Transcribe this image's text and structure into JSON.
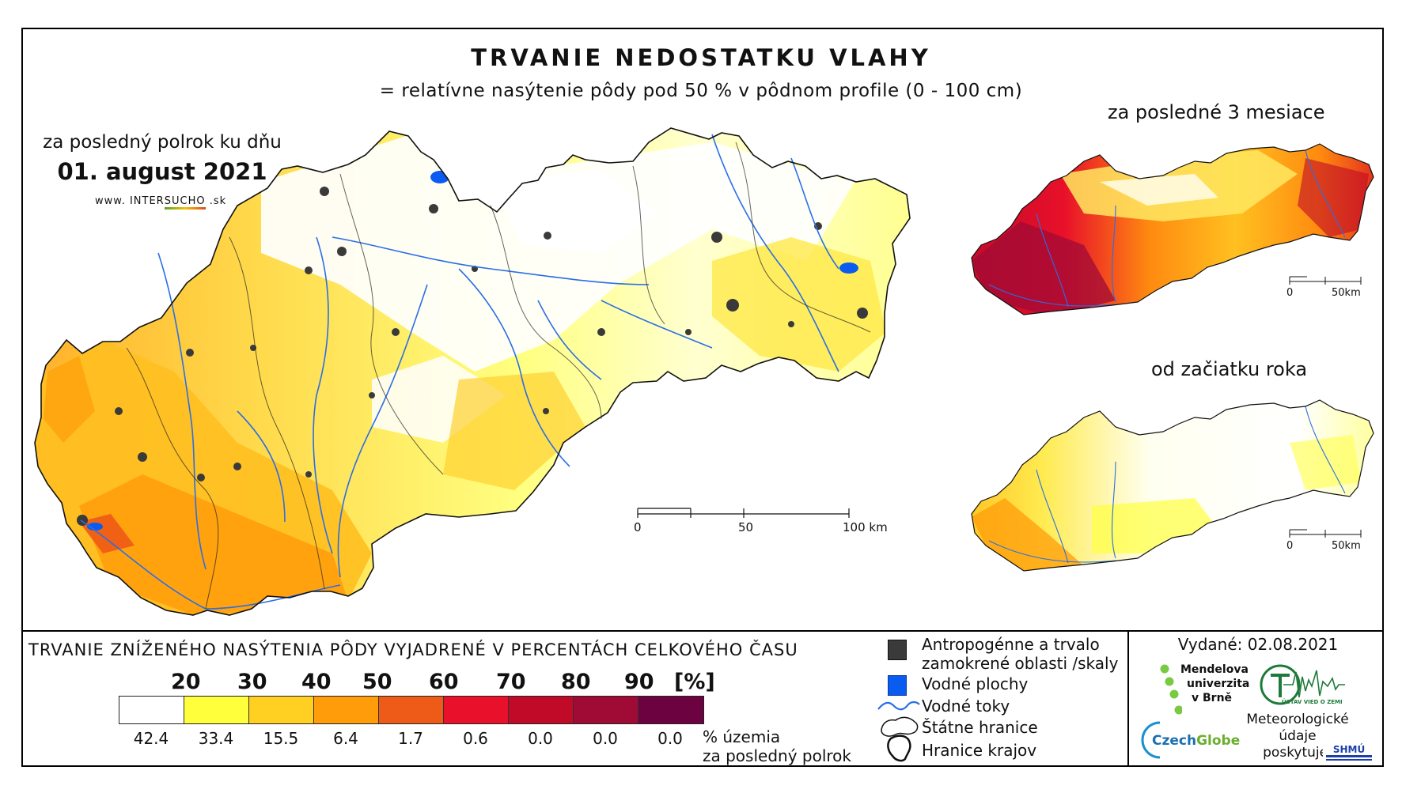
{
  "title": "TRVANIE NEDOSTATKU VLAHY",
  "subtitle": "= relatívne nasýtenie pôdy pod 50 % v pôdnom profile (0 - 100 cm)",
  "main_map": {
    "period_label": "za posledný polrok ku dňu",
    "date": "01. august 2021",
    "website_prefix": "www. INTER",
    "website_highlight": "SUCHO",
    "website_suffix": " .sk",
    "scale": {
      "t0": "0",
      "t1": "50",
      "t2": "100 km"
    }
  },
  "inset_top": {
    "label": "za posledné 3 mesiace",
    "scale": {
      "t0": "0",
      "t1": "50km"
    }
  },
  "inset_bottom": {
    "label": "od začiatku roka",
    "scale": {
      "t0": "0",
      "t1": "50km"
    }
  },
  "legend": {
    "title": "TRVANIE ZNÍŽENÉHO NASÝTENIA PÔDY VYJADRENÉ V PERCENTÁCH CELKOVÉHO ČASU",
    "ticks": [
      "20",
      "30",
      "40",
      "50",
      "60",
      "70",
      "80",
      "90"
    ],
    "unit": "[%]",
    "colors": [
      "#ffffff",
      "#ffff3c",
      "#ffcf21",
      "#ff9c0a",
      "#ee5a17",
      "#e8102a",
      "#c00a27",
      "#a00b36",
      "#6c0340"
    ],
    "percentages": [
      "42.4",
      "33.4",
      "15.5",
      "6.4",
      "1.7",
      "0.6",
      "0.0",
      "0.0",
      "0.0"
    ],
    "percent_label_line1": "% územia",
    "percent_label_line2": "za posledný polrok"
  },
  "symbols": {
    "anthropogenic_line1": "Antropogénne a trvalo",
    "anthropogenic_line2": "zamokrené oblasti /skaly",
    "water_bodies": "Vodné plochy",
    "rivers": "Vodné toky",
    "state_border": "Štátne hranice",
    "region_border": "Hranice krajov",
    "colors": {
      "anthropogenic": "#3a3a3a",
      "water": "#0a5cf0",
      "river": "#2a6ee6"
    }
  },
  "issued": "Vydané: 02.08.2021",
  "logos": {
    "mendel_line1": "Mendelova",
    "mendel_line2": "univerzita",
    "mendel_line3": "v Brně",
    "ustav_text": "ÚSTAV VIED O ZEMI",
    "czechglobe_a": "Czech",
    "czechglobe_b": "Globe",
    "meteo_line1": "Meteorologické",
    "meteo_line2": "údaje",
    "meteo_line3": "poskytuje:",
    "shmu": "SHMÚ"
  }
}
